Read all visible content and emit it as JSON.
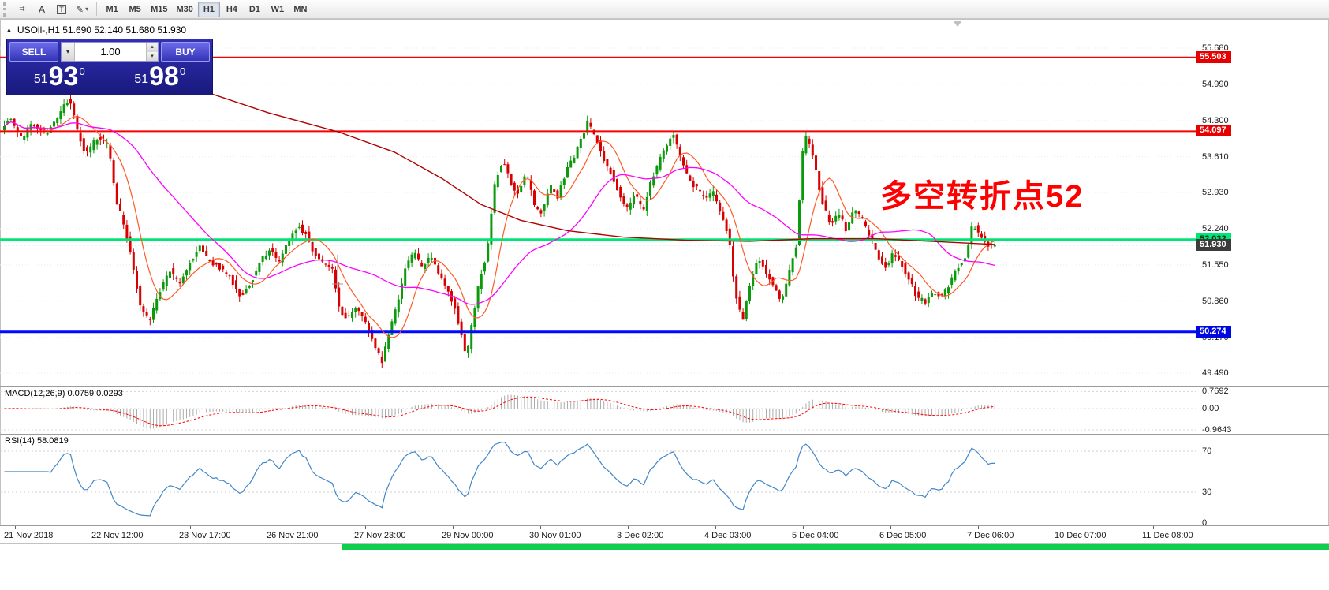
{
  "toolbar": {
    "tools": [
      {
        "name": "crosshair-tool",
        "glyph": "⌗",
        "boxed": false,
        "dropdown": false
      },
      {
        "name": "insert-text-tool",
        "glyph": "A",
        "boxed": false,
        "dropdown": false
      },
      {
        "name": "text-label-tool",
        "glyph": "T",
        "boxed": true,
        "dropdown": false
      },
      {
        "name": "draw-objects-tool",
        "glyph": "✎",
        "boxed": false,
        "dropdown": true
      }
    ],
    "timeframes": [
      "M1",
      "M5",
      "M15",
      "M30",
      "H1",
      "H4",
      "D1",
      "W1",
      "MN"
    ],
    "active_timeframe": "H1"
  },
  "trade_panel": {
    "toggle_arrow": "▲",
    "sell_label": "SELL",
    "buy_label": "BUY",
    "volume": "1.00",
    "sell_price": {
      "small": "51",
      "big": "93",
      "sup": "0"
    },
    "buy_price": {
      "small": "51",
      "big": "98",
      "sup": "0"
    }
  },
  "chart": {
    "title": "USOil-,H1 51.690 52.140 51.680 51.930",
    "annotation": "多空转折点52",
    "y_ticks": [
      "55.680",
      "54.990",
      "54.300",
      "53.610",
      "52.930",
      "52.240",
      "51.550",
      "50.860",
      "50.170",
      "49.490"
    ],
    "time_labels": [
      "21 Nov 2018",
      "22 Nov 12:00",
      "23 Nov 17:00",
      "26 Nov 21:00",
      "27 Nov 23:00",
      "29 Nov 00:00",
      "30 Nov 01:00",
      "3 Dec 02:00",
      "4 Dec 03:00",
      "5 Dec 04:00",
      "6 Dec 05:00",
      "7 Dec 06:00",
      "10 Dec 07:00",
      "11 Dec 08:00"
    ],
    "levels": [
      {
        "label": "55.503",
        "price": 55.503,
        "color": "#f60000",
        "badge_bg": "#e60000",
        "badge_fg": "#ffffff",
        "width": 2
      },
      {
        "label": "54.097",
        "price": 54.097,
        "color": "#f60000",
        "badge_bg": "#e60000",
        "badge_fg": "#ffffff",
        "width": 2
      },
      {
        "label": "52.032",
        "price": 52.032,
        "color": "#00e676",
        "badge_bg": "#00e676",
        "badge_fg": "#003311",
        "width": 3
      },
      {
        "label": "50.274",
        "price": 50.274,
        "color": "#0008ff",
        "badge_bg": "#0008e0",
        "badge_fg": "#ffffff",
        "width": 3
      }
    ],
    "current_price": {
      "label": "51.930",
      "price": 51.93,
      "badge_bg": "#3c3c3c",
      "badge_fg": "#ffffff"
    },
    "colors": {
      "up": "#0b9a0b",
      "down": "#d80000",
      "ma_fast": "#ff5a26",
      "ma_mid": "#ff00ff",
      "ma_long": "#b00000"
    },
    "price_path": [
      [
        0,
        54.1
      ],
      [
        15,
        54.35
      ],
      [
        30,
        53.95
      ],
      [
        45,
        54.25
      ],
      [
        60,
        54.05
      ],
      [
        75,
        54.3
      ],
      [
        90,
        54.75
      ],
      [
        100,
        54.15
      ],
      [
        112,
        53.65
      ],
      [
        125,
        53.95
      ],
      [
        140,
        53.85
      ],
      [
        150,
        52.8
      ],
      [
        160,
        52.3
      ],
      [
        170,
        51.65
      ],
      [
        180,
        50.8
      ],
      [
        192,
        50.45
      ],
      [
        205,
        51.05
      ],
      [
        218,
        51.45
      ],
      [
        230,
        51.15
      ],
      [
        242,
        51.55
      ],
      [
        255,
        51.9
      ],
      [
        268,
        51.6
      ],
      [
        282,
        51.5
      ],
      [
        295,
        51.3
      ],
      [
        308,
        50.95
      ],
      [
        320,
        51.2
      ],
      [
        332,
        51.6
      ],
      [
        344,
        51.85
      ],
      [
        356,
        51.6
      ],
      [
        368,
        52.0
      ],
      [
        380,
        52.3
      ],
      [
        390,
        52.15
      ],
      [
        400,
        51.8
      ],
      [
        412,
        51.6
      ],
      [
        424,
        51.45
      ],
      [
        434,
        50.6
      ],
      [
        444,
        50.55
      ],
      [
        455,
        50.8
      ],
      [
        465,
        50.45
      ],
      [
        477,
        50.05
      ],
      [
        487,
        49.7
      ],
      [
        497,
        50.35
      ],
      [
        508,
        50.9
      ],
      [
        518,
        51.55
      ],
      [
        528,
        51.8
      ],
      [
        538,
        51.5
      ],
      [
        548,
        51.7
      ],
      [
        558,
        51.4
      ],
      [
        568,
        51.1
      ],
      [
        578,
        50.8
      ],
      [
        588,
        50.2
      ],
      [
        594,
        49.75
      ],
      [
        602,
        50.55
      ],
      [
        612,
        51.35
      ],
      [
        620,
        51.8
      ],
      [
        630,
        53.1
      ],
      [
        640,
        53.55
      ],
      [
        650,
        53.1
      ],
      [
        660,
        52.9
      ],
      [
        670,
        53.3
      ],
      [
        680,
        52.7
      ],
      [
        690,
        52.5
      ],
      [
        700,
        53.05
      ],
      [
        710,
        52.85
      ],
      [
        720,
        53.3
      ],
      [
        730,
        53.6
      ],
      [
        740,
        53.95
      ],
      [
        748,
        54.28
      ],
      [
        758,
        53.95
      ],
      [
        768,
        53.55
      ],
      [
        778,
        53.3
      ],
      [
        788,
        52.9
      ],
      [
        798,
        52.6
      ],
      [
        808,
        52.9
      ],
      [
        818,
        52.55
      ],
      [
        828,
        53.15
      ],
      [
        838,
        53.5
      ],
      [
        848,
        53.85
      ],
      [
        856,
        54.1
      ],
      [
        866,
        53.55
      ],
      [
        876,
        53.2
      ],
      [
        886,
        53.0
      ],
      [
        896,
        52.8
      ],
      [
        906,
        52.95
      ],
      [
        916,
        52.55
      ],
      [
        926,
        52.15
      ],
      [
        934,
        51.1
      ],
      [
        944,
        50.45
      ],
      [
        954,
        51.25
      ],
      [
        964,
        51.7
      ],
      [
        974,
        51.4
      ],
      [
        984,
        51.1
      ],
      [
        994,
        50.85
      ],
      [
        1004,
        51.45
      ],
      [
        1012,
        51.9
      ],
      [
        1022,
        54.05
      ],
      [
        1030,
        53.85
      ],
      [
        1038,
        53.25
      ],
      [
        1046,
        52.7
      ],
      [
        1056,
        52.3
      ],
      [
        1066,
        52.55
      ],
      [
        1076,
        52.2
      ],
      [
        1086,
        52.65
      ],
      [
        1096,
        52.4
      ],
      [
        1106,
        52.1
      ],
      [
        1116,
        51.7
      ],
      [
        1126,
        51.5
      ],
      [
        1136,
        51.8
      ],
      [
        1146,
        51.55
      ],
      [
        1156,
        51.25
      ],
      [
        1166,
        50.9
      ],
      [
        1176,
        50.85
      ],
      [
        1186,
        51.05
      ],
      [
        1196,
        50.95
      ],
      [
        1206,
        51.15
      ],
      [
        1216,
        51.5
      ],
      [
        1226,
        51.7
      ],
      [
        1236,
        52.35
      ],
      [
        1246,
        52.1
      ],
      [
        1254,
        51.95
      ],
      [
        1262,
        51.93
      ]
    ],
    "longma_path": [
      [
        270,
        54.8
      ],
      [
        340,
        54.45
      ],
      [
        430,
        54.08
      ],
      [
        500,
        53.7
      ],
      [
        560,
        53.2
      ],
      [
        610,
        52.7
      ],
      [
        660,
        52.4
      ],
      [
        720,
        52.2
      ],
      [
        790,
        52.08
      ],
      [
        870,
        52.02
      ],
      [
        950,
        52.0
      ],
      [
        1030,
        52.05
      ],
      [
        1110,
        52.05
      ],
      [
        1180,
        52.0
      ],
      [
        1262,
        51.94
      ]
    ]
  },
  "macd": {
    "title": "MACD(12,26,9) 0.0759 0.0293",
    "ticks": [
      "0.7692",
      "0.00",
      "-0.9643"
    ]
  },
  "rsi": {
    "title": "RSI(14) 58.0819",
    "ticks": [
      "70",
      "30",
      "0"
    ],
    "levels": [
      70,
      30
    ]
  }
}
